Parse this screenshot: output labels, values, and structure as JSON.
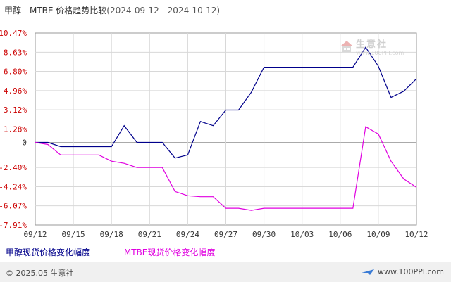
{
  "title": {
    "prefix": "甲醇 - MTBE 价格趋势比较",
    "range": "(2024-09-12 - 2024-10-12)"
  },
  "watermark": {
    "brand": "生意社",
    "url": "www.100PPI.com"
  },
  "footer": {
    "copyright": "© 2025.05 生意社",
    "site": "www.100PPI.com"
  },
  "colors": {
    "series1": "#00008B",
    "series2": "#E000E0",
    "axis_label": "#cc0000",
    "grid": "#d8d8d8",
    "zero_line": "#aaaaaa"
  },
  "chart_data": {
    "type": "line",
    "x": [
      "09/12",
      "09/13",
      "09/14",
      "09/15",
      "09/16",
      "09/17",
      "09/18",
      "09/19",
      "09/20",
      "09/21",
      "09/22",
      "09/23",
      "09/24",
      "09/25",
      "09/26",
      "09/27",
      "09/28",
      "09/29",
      "09/30",
      "10/01",
      "10/02",
      "10/03",
      "10/04",
      "10/05",
      "10/06",
      "10/07",
      "10/08",
      "10/09",
      "10/10",
      "10/11",
      "10/12"
    ],
    "x_tick_labels": [
      "09/12",
      "09/15",
      "09/18",
      "09/21",
      "09/24",
      "09/27",
      "09/30",
      "10/03",
      "10/06",
      "10/09",
      "10/12"
    ],
    "y_tick_labels": [
      "10.47%",
      "8.63%",
      "6.80%",
      "4.96%",
      "3.12%",
      "1.28%",
      "0",
      "-2.40%",
      "-4.24%",
      "-6.07%",
      "-7.91%"
    ],
    "ylim": [
      -7.91,
      10.47
    ],
    "grid": true,
    "legend_position": "bottom-left",
    "series": [
      {
        "name": "甲醇现货价格变化幅度",
        "values": [
          0,
          0,
          -0.4,
          -0.4,
          -0.4,
          -0.4,
          -0.4,
          1.6,
          0,
          0,
          0,
          -1.5,
          -1.2,
          2.0,
          1.6,
          3.1,
          3.1,
          4.8,
          7.2,
          7.2,
          7.2,
          7.2,
          7.2,
          7.2,
          7.2,
          7.2,
          9.1,
          7.3,
          4.3,
          4.9,
          6.1
        ]
      },
      {
        "name": "MTBE现货价格变化幅度",
        "values": [
          0,
          -0.2,
          -1.2,
          -1.2,
          -1.2,
          -1.2,
          -1.8,
          -2.0,
          -2.4,
          -2.4,
          -2.4,
          -4.7,
          -5.1,
          -5.2,
          -5.2,
          -6.3,
          -6.3,
          -6.5,
          -6.3,
          -6.3,
          -6.3,
          -6.3,
          -6.3,
          -6.3,
          -6.3,
          -6.3,
          1.5,
          0.8,
          -1.8,
          -3.5,
          -4.3
        ]
      }
    ]
  }
}
